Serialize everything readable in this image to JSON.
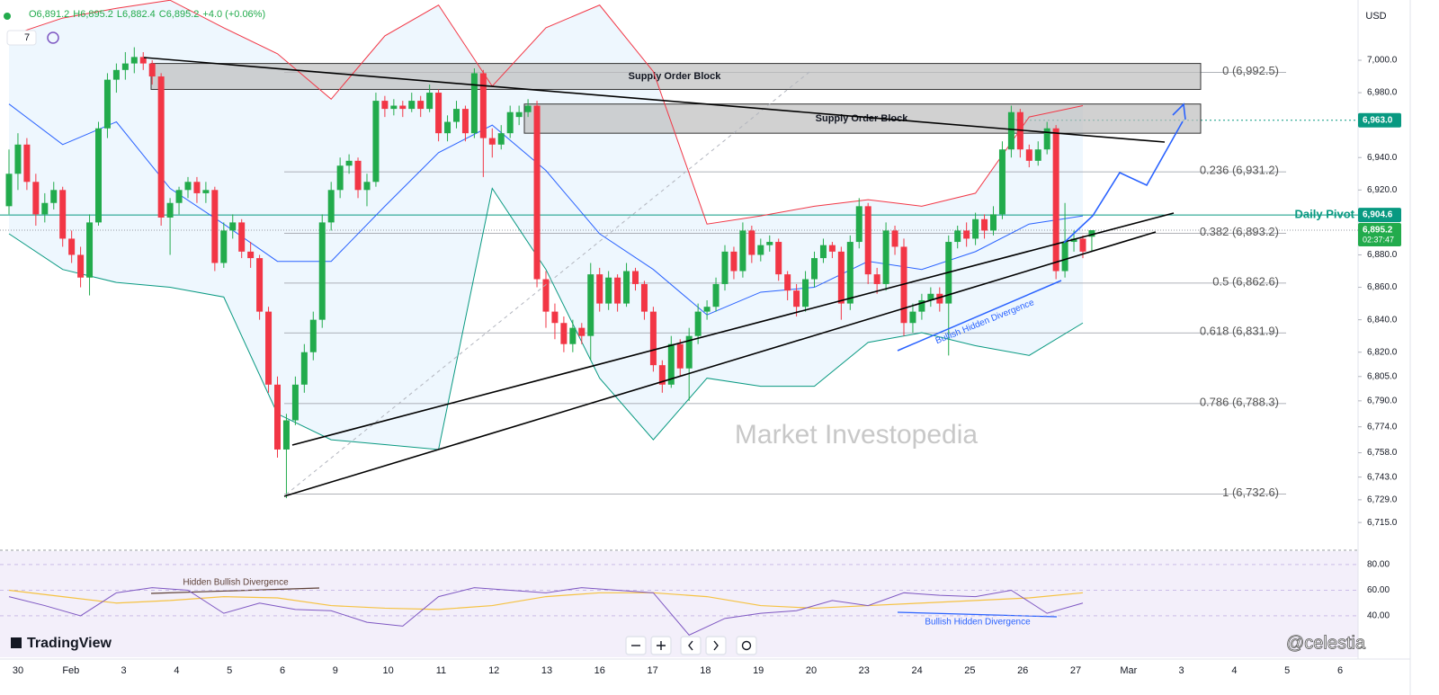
{
  "chart_data": {
    "type": "candlestick",
    "categories": [
      "30",
      "Feb",
      "3",
      "4",
      "5",
      "6",
      "9",
      "10",
      "11",
      "12",
      "13",
      "16",
      "17",
      "18",
      "19",
      "20",
      "23",
      "24",
      "25",
      "26",
      "27",
      "Mar",
      "3",
      "4",
      "5",
      "6"
    ],
    "ylim": [
      6699,
      7032.7
    ],
    "yticks": [
      {
        "value": 7000,
        "label": "7,000.0"
      },
      {
        "value": 6980,
        "label": "6,980.0"
      },
      {
        "value": 6940,
        "label": "6,940.0"
      },
      {
        "value": 6920,
        "label": "6,920.0"
      },
      {
        "value": 6880,
        "label": "6,880.0"
      },
      {
        "value": 6860,
        "label": "6,860.0"
      },
      {
        "value": 6840,
        "label": "6,840.0"
      },
      {
        "value": 6820,
        "label": "6,820.0"
      },
      {
        "value": 6805,
        "label": "6,805.0"
      },
      {
        "value": 6790,
        "label": "6,790.0"
      },
      {
        "value": 6774,
        "label": "6,774.0"
      },
      {
        "value": 6758,
        "label": "6,758.0"
      },
      {
        "value": 6743,
        "label": "6,743.0"
      },
      {
        "value": 6729,
        "label": "6,729.0"
      },
      {
        "value": 6715,
        "label": "6,715.0"
      }
    ],
    "up_color": "#22ab4c",
    "down_color": "#f23645",
    "candles": [
      [
        6910,
        6945,
        6905,
        6930
      ],
      [
        6930,
        6955,
        6920,
        6948
      ],
      [
        6948,
        6952,
        6920,
        6925
      ],
      [
        6925,
        6930,
        6898,
        6905
      ],
      [
        6905,
        6918,
        6900,
        6912
      ],
      [
        6912,
        6925,
        6908,
        6920
      ],
      [
        6920,
        6922,
        6885,
        6890
      ],
      [
        6890,
        6895,
        6875,
        6880
      ],
      [
        6880,
        6885,
        6860,
        6866
      ],
      [
        6866,
        6905,
        6855,
        6900
      ],
      [
        6900,
        6962,
        6898,
        6958
      ],
      [
        6958,
        6992,
        6952,
        6988
      ],
      [
        6988,
        6998,
        6980,
        6994
      ],
      [
        6994,
        7005,
        6988,
        6998
      ],
      [
        6998,
        7008,
        6992,
        7002
      ],
      [
        7002,
        7005,
        6994,
        6998
      ],
      [
        6998,
        7000,
        6985,
        6990
      ],
      [
        6990,
        6992,
        6898,
        6903
      ],
      [
        6903,
        6915,
        6880,
        6912
      ],
      [
        6912,
        6922,
        6905,
        6920
      ],
      [
        6920,
        6928,
        6915,
        6925
      ],
      [
        6925,
        6928,
        6912,
        6918
      ],
      [
        6918,
        6925,
        6912,
        6920
      ],
      [
        6920,
        6922,
        6870,
        6875
      ],
      [
        6875,
        6900,
        6872,
        6895
      ],
      [
        6895,
        6905,
        6890,
        6900
      ],
      [
        6900,
        6902,
        6878,
        6882
      ],
      [
        6882,
        6888,
        6872,
        6878
      ],
      [
        6878,
        6880,
        6840,
        6845
      ],
      [
        6845,
        6848,
        6795,
        6800
      ],
      [
        6800,
        6805,
        6755,
        6760
      ],
      [
        6760,
        6782,
        6730,
        6778
      ],
      [
        6778,
        6805,
        6775,
        6800
      ],
      [
        6800,
        6825,
        6795,
        6820
      ],
      [
        6820,
        6845,
        6815,
        6840
      ],
      [
        6840,
        6905,
        6835,
        6900
      ],
      [
        6900,
        6925,
        6895,
        6920
      ],
      [
        6920,
        6940,
        6915,
        6935
      ],
      [
        6935,
        6942,
        6930,
        6938
      ],
      [
        6938,
        6940,
        6915,
        6920
      ],
      [
        6920,
        6930,
        6910,
        6925
      ],
      [
        6925,
        6980,
        6922,
        6975
      ],
      [
        6975,
        6978,
        6965,
        6970
      ],
      [
        6970,
        6976,
        6966,
        6972
      ],
      [
        6972,
        6975,
        6965,
        6970
      ],
      [
        6970,
        6980,
        6968,
        6975
      ],
      [
        6975,
        6978,
        6965,
        6970
      ],
      [
        6970,
        6985,
        6968,
        6980
      ],
      [
        6980,
        6982,
        6950,
        6955
      ],
      [
        6955,
        6966,
        6950,
        6962
      ],
      [
        6962,
        6975,
        6958,
        6970
      ],
      [
        6970,
        6972,
        6950,
        6955
      ],
      [
        6955,
        6995,
        6952,
        6992
      ],
      [
        6992,
        6994,
        6928,
        6952
      ],
      [
        6952,
        6958,
        6940,
        6948
      ],
      [
        6948,
        6960,
        6945,
        6955
      ],
      [
        6955,
        6972,
        6952,
        6968
      ],
      [
        6965,
        6972,
        6960,
        6968
      ],
      [
        6968,
        6976,
        6965,
        6972
      ],
      [
        6972,
        6975,
        6860,
        6865
      ],
      [
        6865,
        6870,
        6835,
        6845
      ],
      [
        6845,
        6850,
        6828,
        6838
      ],
      [
        6838,
        6842,
        6820,
        6825
      ],
      [
        6825,
        6840,
        6820,
        6835
      ],
      [
        6835,
        6838,
        6825,
        6830
      ],
      [
        6830,
        6875,
        6815,
        6868
      ],
      [
        6868,
        6872,
        6845,
        6850
      ],
      [
        6850,
        6870,
        6846,
        6866
      ],
      [
        6866,
        6868,
        6845,
        6850
      ],
      [
        6850,
        6875,
        6848,
        6870
      ],
      [
        6870,
        6872,
        6858,
        6862
      ],
      [
        6862,
        6864,
        6840,
        6845
      ],
      [
        6845,
        6848,
        6808,
        6812
      ],
      [
        6812,
        6815,
        6795,
        6800
      ],
      [
        6800,
        6830,
        6798,
        6825
      ],
      [
        6825,
        6828,
        6805,
        6810
      ],
      [
        6810,
        6835,
        6790,
        6830
      ],
      [
        6830,
        6850,
        6825,
        6845
      ],
      [
        6845,
        6852,
        6840,
        6848
      ],
      [
        6848,
        6866,
        6845,
        6862
      ],
      [
        6862,
        6886,
        6858,
        6882
      ],
      [
        6882,
        6885,
        6865,
        6870
      ],
      [
        6870,
        6900,
        6866,
        6895
      ],
      [
        6895,
        6898,
        6875,
        6880
      ],
      [
        6880,
        6890,
        6876,
        6886
      ],
      [
        6886,
        6892,
        6882,
        6888
      ],
      [
        6888,
        6890,
        6864,
        6868
      ],
      [
        6868,
        6870,
        6852,
        6858
      ],
      [
        6858,
        6862,
        6842,
        6848
      ],
      [
        6848,
        6870,
        6845,
        6865
      ],
      [
        6865,
        6882,
        6860,
        6878
      ],
      [
        6878,
        6890,
        6875,
        6886
      ],
      [
        6886,
        6888,
        6878,
        6882
      ],
      [
        6882,
        6885,
        6840,
        6850
      ],
      [
        6850,
        6892,
        6846,
        6888
      ],
      [
        6888,
        6915,
        6884,
        6910
      ],
      [
        6910,
        6912,
        6862,
        6868
      ],
      [
        6868,
        6872,
        6856,
        6862
      ],
      [
        6862,
        6900,
        6858,
        6895
      ],
      [
        6895,
        6898,
        6880,
        6885
      ],
      [
        6885,
        6890,
        6830,
        6838
      ],
      [
        6838,
        6850,
        6832,
        6845
      ],
      [
        6845,
        6856,
        6840,
        6852
      ],
      [
        6852,
        6860,
        6848,
        6856
      ],
      [
        6856,
        6860,
        6845,
        6850
      ],
      [
        6850,
        6892,
        6818,
        6888
      ],
      [
        6888,
        6898,
        6884,
        6895
      ],
      [
        6895,
        6900,
        6885,
        6890
      ],
      [
        6890,
        6906,
        6886,
        6902
      ],
      [
        6902,
        6905,
        6890,
        6895
      ],
      [
        6895,
        6910,
        6892,
        6905
      ],
      [
        6905,
        6950,
        6902,
        6945
      ],
      [
        6945,
        6972,
        6940,
        6968
      ],
      [
        6968,
        6970,
        6940,
        6945
      ],
      [
        6945,
        6948,
        6934,
        6938
      ],
      [
        6938,
        6950,
        6935,
        6945
      ],
      [
        6945,
        6962,
        6942,
        6958
      ],
      [
        6958,
        6960,
        6865,
        6870
      ],
      [
        6870,
        6912,
        6866,
        6888
      ],
      [
        6888,
        6895,
        6882,
        6890
      ],
      [
        6890,
        6892,
        6878,
        6882
      ],
      [
        6891.2,
        6895.2,
        6882.4,
        6895.2
      ]
    ],
    "overlays": [
      {
        "color": "#f23645",
        "values": [
          7015,
          7026,
          7032,
          7037,
          7020,
          7004,
          6976,
          7015,
          7034,
          6984,
          7020,
          7034,
          6993,
          6899,
          6904,
          6910,
          6914,
          6910,
          6918,
          6965,
          6972
        ]
      },
      {
        "color": "#2962ff",
        "values": [
          6973,
          6948,
          6962,
          6921,
          6899,
          6876,
          6876,
          6910,
          6943,
          6960,
          6932,
          6893,
          6871,
          6843,
          6857,
          6860,
          6876,
          6871,
          6882,
          6899,
          6904
        ]
      },
      {
        "color": "#089981",
        "values": [
          6893,
          6871,
          6863,
          6860,
          6854,
          6782,
          6766,
          6763,
          6760,
          6921,
          6871,
          6804,
          6766,
          6804,
          6799,
          6799,
          6826,
          6832,
          6824,
          6818,
          6838
        ]
      }
    ],
    "band_fill": "#2196f3",
    "fib_levels": [
      {
        "value": 6992.5,
        "label": "0 (6,992.5)"
      },
      {
        "value": 6931.2,
        "label": "0.236 (6,931.2)"
      },
      {
        "value": 6893.2,
        "label": "0.382 (6,893.2)"
      },
      {
        "value": 6862.6,
        "label": "0.5 (6,862.6)"
      },
      {
        "value": 6831.9,
        "label": "0.618 (6,831.9)"
      },
      {
        "value": 6788.3,
        "label": "0.786 (6,788.3)"
      },
      {
        "value": 6732.6,
        "label": "1 (6,732.6)"
      }
    ],
    "supply_blocks": [
      {
        "label": "Supply Order Block",
        "top": 6998,
        "bottom": 6982
      },
      {
        "label": "Supply Order Block",
        "top": 6973,
        "bottom": 6955
      }
    ],
    "target": {
      "value": 6963.0,
      "label": "6,963.0",
      "color": "#089981"
    },
    "pivot": {
      "value": 6904.6,
      "label": "6,904.6",
      "name": "Daily Pivot",
      "color": "#089981"
    },
    "last": {
      "value": 6895.2,
      "label": "6,895.2",
      "countdown": "02:37:47",
      "color": "#22ab4c"
    },
    "annotation": "Bullish Hidden Divergence",
    "watermark": "Market Investopedia",
    "rsi": {
      "ylim": [
        8.4,
        89.1
      ],
      "yticks": [
        {
          "value": 80,
          "label": "80.00"
        },
        {
          "value": 60,
          "label": "60.00"
        },
        {
          "value": 40,
          "label": "40.00"
        }
      ],
      "color": "#7e57c2",
      "values": [
        55,
        48,
        40,
        58,
        62,
        60,
        42,
        50,
        45,
        44,
        35,
        32,
        55,
        62,
        60,
        58,
        62,
        60,
        58,
        25,
        38,
        42,
        44,
        52,
        48,
        58,
        56,
        55,
        60,
        42,
        50
      ],
      "ma_color": "#f5c242",
      "ma_values": [
        60,
        55,
        50,
        52,
        55,
        54,
        48,
        46,
        45,
        48,
        55,
        58,
        58,
        55,
        48,
        46,
        48,
        50,
        52,
        54,
        58
      ],
      "annotations": [
        "Hidden Bullish Divergence",
        "Bullish Hidden Divergence"
      ]
    }
  },
  "ui": {
    "ohlc": [
      "O6,891.2",
      "H6,895.2",
      "L6,882.4",
      "C6,895.2",
      "+4.0 (+0.06%)"
    ],
    "indicator_count": "7",
    "currency": "USD",
    "brand": "TradingView",
    "credit": "@celestia"
  }
}
